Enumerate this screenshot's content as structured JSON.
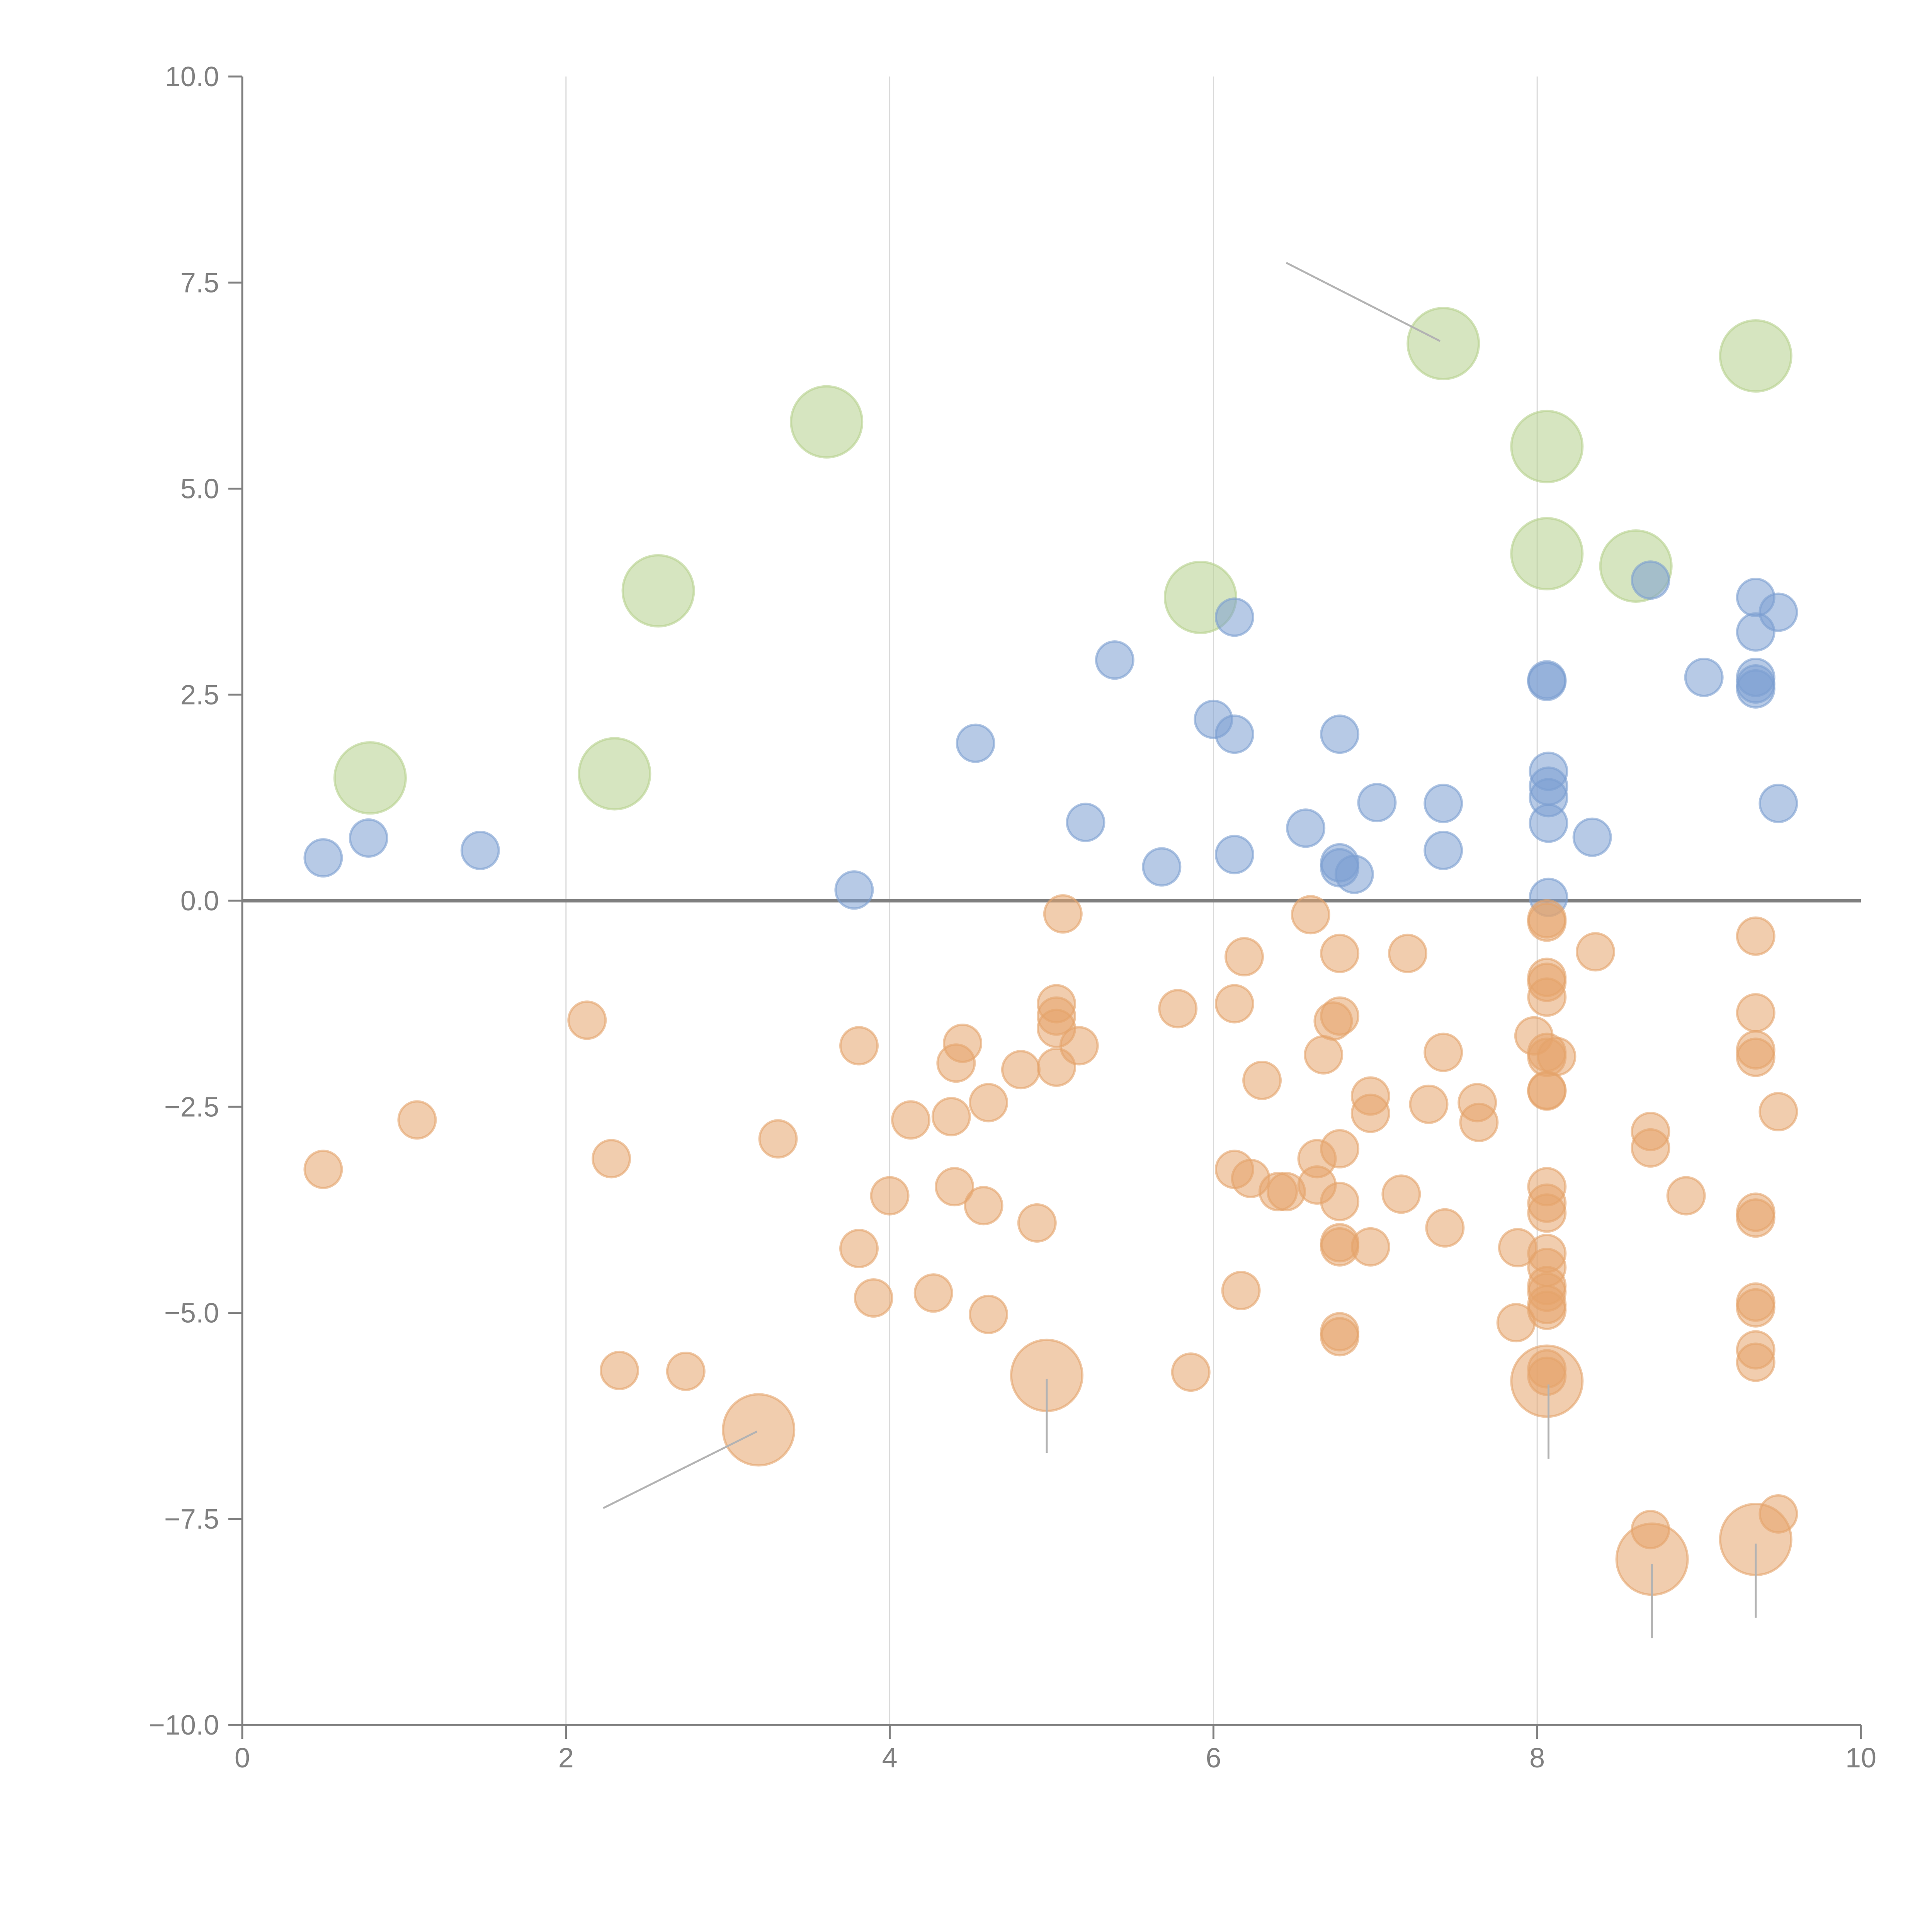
{
  "chart_data": {
    "type": "scatter",
    "title": "",
    "xlabel": "",
    "ylabel": "",
    "xlim": [
      0,
      10
    ],
    "ylim": [
      -10,
      10
    ],
    "x_ticks": [
      "0",
      "2",
      "4",
      "6",
      "8",
      "10"
    ],
    "x_tick_values": [
      0,
      2,
      4,
      6,
      8,
      10
    ],
    "y_ticks": [
      "10.0",
      "7.5",
      "5.0",
      "2.5",
      "0.0",
      "−2.5",
      "−5.0",
      "−7.5",
      "−10.0"
    ],
    "y_tick_values": [
      10,
      7.5,
      5,
      2.5,
      0,
      -2.5,
      -5,
      -7.5,
      -10
    ],
    "grid": "vertical",
    "legend": "none",
    "reference_line_y": 0,
    "series": [
      {
        "name": "green",
        "color": "#b5d08c",
        "size": "large",
        "points": [
          [
            0.79,
            1.49
          ],
          [
            2.3,
            1.54
          ],
          [
            2.57,
            3.76
          ],
          [
            3.61,
            5.81
          ],
          [
            5.92,
            3.68
          ],
          [
            7.42,
            6.76
          ],
          [
            8.06,
            5.51
          ],
          [
            8.06,
            4.21
          ],
          [
            8.61,
            4.06
          ],
          [
            9.35,
            6.61
          ]
        ]
      },
      {
        "name": "blue",
        "color": "#7c9fd1",
        "size": "small",
        "points": [
          [
            0.5,
            0.52
          ],
          [
            0.78,
            0.76
          ],
          [
            1.47,
            0.61
          ],
          [
            3.78,
            0.13
          ],
          [
            4.53,
            1.91
          ],
          [
            5.21,
            0.95
          ],
          [
            5.39,
            2.92
          ],
          [
            5.68,
            0.41
          ],
          [
            6.0,
            2.2
          ],
          [
            6.13,
            3.44
          ],
          [
            6.13,
            2.02
          ],
          [
            6.13,
            0.56
          ],
          [
            6.57,
            0.88
          ],
          [
            6.78,
            2.02
          ],
          [
            6.78,
            0.46
          ],
          [
            6.78,
            0.4
          ],
          [
            6.87,
            0.32
          ],
          [
            7.01,
            1.19
          ],
          [
            7.42,
            1.18
          ],
          [
            7.42,
            0.61
          ],
          [
            8.06,
            2.68
          ],
          [
            8.06,
            2.66
          ],
          [
            8.07,
            1.57
          ],
          [
            8.07,
            1.39
          ],
          [
            8.07,
            1.25
          ],
          [
            8.07,
            0.94
          ],
          [
            8.07,
            0.04
          ],
          [
            8.34,
            0.77
          ],
          [
            8.7,
            3.89
          ],
          [
            9.03,
            2.71
          ],
          [
            9.35,
            3.68
          ],
          [
            9.35,
            3.26
          ],
          [
            9.35,
            2.71
          ],
          [
            9.35,
            2.63
          ],
          [
            9.35,
            2.57
          ],
          [
            9.49,
            3.5
          ],
          [
            9.49,
            1.18
          ]
        ]
      },
      {
        "name": "orange",
        "color": "#e5a46b",
        "size": "small",
        "points": [
          [
            0.5,
            -3.26
          ],
          [
            1.08,
            -2.66
          ],
          [
            2.13,
            -1.45
          ],
          [
            2.28,
            -3.13
          ],
          [
            2.33,
            -5.7
          ],
          [
            2.74,
            -5.71
          ],
          [
            3.31,
            -2.89
          ],
          [
            3.81,
            -1.76
          ],
          [
            3.81,
            -4.22
          ],
          [
            3.9,
            -4.82
          ],
          [
            4.0,
            -3.58
          ],
          [
            4.13,
            -2.66
          ],
          [
            4.27,
            -4.76
          ],
          [
            4.38,
            -2.62
          ],
          [
            4.4,
            -3.47
          ],
          [
            4.41,
            -1.97
          ],
          [
            4.45,
            -1.73
          ],
          [
            4.58,
            -3.7
          ],
          [
            4.61,
            -2.45
          ],
          [
            4.61,
            -5.02
          ],
          [
            4.81,
            -2.05
          ],
          [
            4.91,
            -3.91
          ],
          [
            5.03,
            -1.25
          ],
          [
            5.03,
            -1.4
          ],
          [
            5.03,
            -1.55
          ],
          [
            5.03,
            -2.02
          ],
          [
            5.07,
            -0.16
          ],
          [
            5.17,
            -1.76
          ],
          [
            5.78,
            -1.31
          ],
          [
            5.86,
            -5.72
          ],
          [
            6.13,
            -1.25
          ],
          [
            6.13,
            -3.26
          ],
          [
            6.17,
            -4.73
          ],
          [
            6.19,
            -0.68
          ],
          [
            6.23,
            -3.37
          ],
          [
            6.3,
            -2.18
          ],
          [
            6.4,
            -3.53
          ],
          [
            6.45,
            -3.53
          ],
          [
            6.6,
            -0.17
          ],
          [
            6.64,
            -3.13
          ],
          [
            6.64,
            -3.45
          ],
          [
            6.68,
            -1.87
          ],
          [
            6.74,
            -1.46
          ],
          [
            6.78,
            -0.64
          ],
          [
            6.78,
            -1.4
          ],
          [
            6.78,
            -3.01
          ],
          [
            6.78,
            -3.65
          ],
          [
            6.78,
            -4.15
          ],
          [
            6.78,
            -4.2
          ],
          [
            6.78,
            -5.23
          ],
          [
            6.78,
            -5.29
          ],
          [
            6.97,
            -2.37
          ],
          [
            6.97,
            -2.58
          ],
          [
            6.97,
            -4.2
          ],
          [
            7.16,
            -3.56
          ],
          [
            7.2,
            -0.64
          ],
          [
            7.33,
            -2.47
          ],
          [
            7.42,
            -1.84
          ],
          [
            7.43,
            -3.97
          ],
          [
            7.63,
            -2.45
          ],
          [
            7.64,
            -2.69
          ],
          [
            7.88,
            -4.21
          ],
          [
            7.87,
            -5.12
          ],
          [
            7.98,
            -1.64
          ],
          [
            8.06,
            -0.22
          ],
          [
            8.06,
            -0.26
          ],
          [
            8.06,
            -0.93
          ],
          [
            8.06,
            -0.99
          ],
          [
            8.06,
            -1.17
          ],
          [
            8.06,
            -1.84
          ],
          [
            8.06,
            -1.9
          ],
          [
            8.06,
            -2.3
          ],
          [
            8.06,
            -2.31
          ],
          [
            8.06,
            -3.47
          ],
          [
            8.06,
            -3.67
          ],
          [
            8.06,
            -3.79
          ],
          [
            8.06,
            -4.28
          ],
          [
            8.06,
            -4.45
          ],
          [
            8.06,
            -4.67
          ],
          [
            8.06,
            -4.75
          ],
          [
            8.06,
            -4.9
          ],
          [
            8.06,
            -4.97
          ],
          [
            8.06,
            -5.68
          ],
          [
            8.06,
            -5.77
          ],
          [
            8.12,
            -1.89
          ],
          [
            8.36,
            -0.62
          ],
          [
            8.7,
            -2.8
          ],
          [
            8.7,
            -3.0
          ],
          [
            8.7,
            -7.63
          ],
          [
            8.92,
            -3.58
          ],
          [
            9.35,
            -0.43
          ],
          [
            9.35,
            -1.36
          ],
          [
            9.35,
            -1.81
          ],
          [
            9.35,
            -1.9
          ],
          [
            9.35,
            -3.78
          ],
          [
            9.35,
            -3.85
          ],
          [
            9.35,
            -4.87
          ],
          [
            9.35,
            -4.94
          ],
          [
            9.35,
            -5.45
          ],
          [
            9.35,
            -5.6
          ],
          [
            9.49,
            -2.56
          ],
          [
            9.49,
            -7.44
          ]
        ]
      },
      {
        "name": "orange-large",
        "color": "#e5a46b",
        "size": "large",
        "points": [
          [
            3.19,
            -6.42
          ],
          [
            4.97,
            -5.76
          ],
          [
            8.06,
            -5.83
          ],
          [
            8.71,
            -7.99
          ],
          [
            9.35,
            -7.75
          ]
        ]
      }
    ],
    "annotation_leaders": [
      {
        "from": [
          6.45,
          7.74
        ],
        "to": [
          7.4,
          6.79
        ]
      },
      {
        "from": [
          2.23,
          -7.37
        ],
        "to": [
          3.18,
          -6.44
        ]
      },
      {
        "from": [
          4.97,
          -5.8
        ],
        "to": [
          4.97,
          -6.7
        ]
      },
      {
        "from": [
          8.07,
          -5.87
        ],
        "to": [
          8.07,
          -6.77
        ]
      },
      {
        "from": [
          8.71,
          -8.05
        ],
        "to": [
          8.71,
          -8.95
        ]
      },
      {
        "from": [
          9.35,
          -7.8
        ],
        "to": [
          9.35,
          -8.7
        ]
      }
    ]
  }
}
